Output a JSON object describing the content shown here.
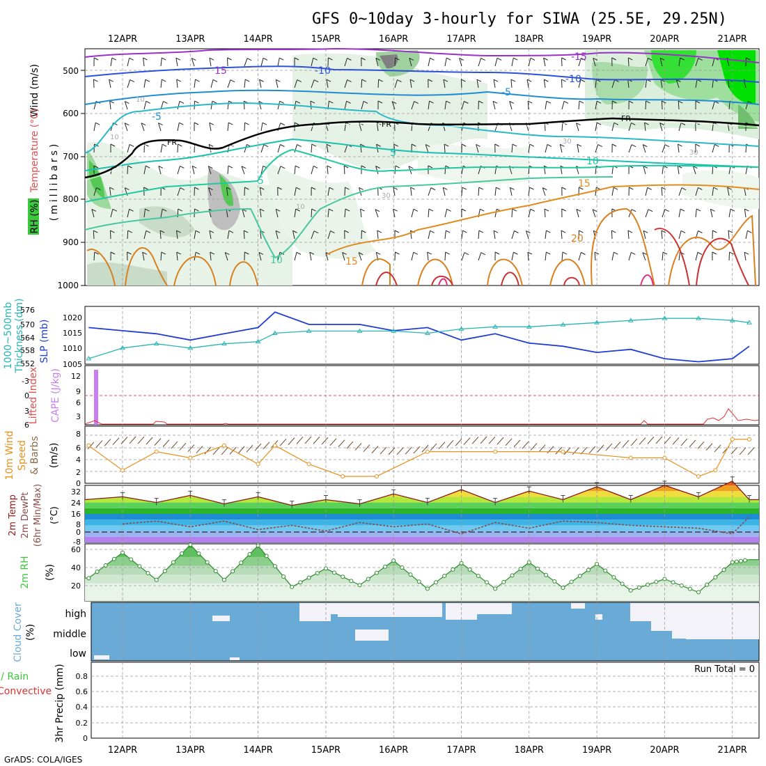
{
  "title": "GFS 0~10day 3-hourly for SIWA (25.5E, 29.25N)",
  "footer": "GrADS: COLA/IGES",
  "dates": [
    "12APR",
    "13APR",
    "14APR",
    "15APR",
    "16APR",
    "17APR",
    "18APR",
    "19APR",
    "20APR",
    "21APR"
  ],
  "colors": {
    "rh_green": "#3cc83c",
    "fr_line": "#000000",
    "slp_line": "#1e3cd2",
    "thickness_line": "#28b4b4",
    "cape_bar": "#c87ef0",
    "li_line": "#e03232",
    "wind_speed": "#e6901e",
    "temp_curve": "#8b1a1a",
    "dewpt_curve": "#8b4a4a",
    "cloud_fill": "#6aaad6",
    "cloud_clear": "#f2f2f8"
  },
  "panels": {
    "upper": {
      "ylabels": [
        "Wind (m/s)",
        "Temperature (°C)",
        "RH (%)",
        "(millibars)"
      ],
      "pressure_ticks": [
        "500",
        "600",
        "700",
        "800",
        "900",
        "1000"
      ],
      "contour_labels": [
        "15",
        "-15",
        "-10",
        "-10",
        "-5",
        "-5",
        "5",
        "FR",
        "FR",
        "FR",
        "5",
        "10",
        "15",
        "10",
        "15",
        "20",
        "10",
        "30",
        "30",
        "10",
        "10",
        "30"
      ]
    },
    "slp": {
      "ylabel_left": [
        "Thickness (dm)",
        "1000~500mb"
      ],
      "ylabel_right": "SLP (mb)",
      "ticks_thick": [
        "576",
        "570",
        "564",
        "558",
        "552"
      ],
      "ticks_slp": [
        "1020",
        "1015",
        "1010",
        "1005"
      ]
    },
    "cape": {
      "ylabel_left": "Lifted Index",
      "ylabel_right": "CAPE (J/kg)",
      "ticks_li": [
        "-3",
        "0",
        "3",
        "6"
      ],
      "ticks_cape": [
        "12",
        "9",
        "6",
        "3"
      ]
    },
    "wind10m": {
      "ylabel": [
        "10m Wind",
        "Speed",
        "& Barbs",
        "(m/s)"
      ],
      "ticks": [
        "8",
        "6",
        "4",
        "2",
        "0"
      ]
    },
    "temp2m": {
      "ylabel": [
        "2m Temp",
        "2m DewPt",
        "(6hr Min/Max)",
        "(°C)"
      ],
      "ticks": [
        "32",
        "24",
        "16",
        "8",
        "0",
        "-8"
      ]
    },
    "rh2m": {
      "ylabel": [
        "2m RH",
        "(%)"
      ],
      "ticks": [
        "60",
        "40",
        "20"
      ]
    },
    "cloud": {
      "ylabel": [
        "Cloud Cover",
        "(%)"
      ],
      "levels": [
        "high",
        "middle",
        "low"
      ]
    },
    "precip": {
      "ylabel": [
        "Total / Rain",
        "Convective",
        "3hr Precip (mm)"
      ],
      "ticks": [
        "0.8",
        "0.6",
        "0.4",
        "0.2",
        "0"
      ],
      "run_total": "Run Total = 0"
    }
  },
  "chart_data": [
    {
      "type": "line",
      "title": "1000~500mb Thickness (dm) and SLP (mb)",
      "x": [
        "11APR12",
        "12APR00",
        "12APR12",
        "13APR00",
        "13APR12",
        "14APR00",
        "14APR06",
        "14APR18",
        "15APR12",
        "16APR00",
        "16APR12",
        "17APR00",
        "17APR12",
        "18APR00",
        "18APR12",
        "19APR00",
        "19APR12",
        "20APR00",
        "20APR12",
        "21APR00",
        "21APR06"
      ],
      "series": [
        {
          "name": "SLP (mb)",
          "values": [
            1017,
            1016,
            1015,
            1013,
            1015,
            1017,
            1022,
            1018,
            1018,
            1016,
            1017,
            1013,
            1015,
            1012,
            1011,
            1009,
            1010,
            1007,
            1006,
            1007,
            1011
          ]
        },
        {
          "name": "Thickness (dm)",
          "values": [
            553,
            558,
            560,
            558,
            560,
            561,
            565,
            566,
            566,
            566,
            565,
            567,
            568,
            568,
            569,
            570,
            571,
            572,
            572,
            571,
            570
          ]
        }
      ]
    },
    {
      "type": "line",
      "title": "10m Wind Speed (m/s)",
      "x": [
        "11APR12",
        "12APR00",
        "12APR12",
        "13APR00",
        "13APR12",
        "14APR00",
        "14APR06",
        "14APR18",
        "15APR06",
        "15APR18",
        "16APR12",
        "17APR12",
        "18APR12",
        "19APR12",
        "20APR00",
        "20APR12",
        "20APR18",
        "21APR00",
        "21APR06"
      ],
      "series": [
        {
          "name": "speed",
          "values": [
            6,
            2,
            5,
            4,
            6,
            3,
            6,
            3,
            1,
            1,
            5,
            5,
            5,
            4,
            4,
            1,
            2,
            7,
            7
          ]
        }
      ],
      "ylim": [
        0,
        8
      ]
    },
    {
      "type": "line",
      "title": "2m Temp / 2m DewPt (°C)",
      "x": [
        "12APR00",
        "12APR12",
        "13APR00",
        "13APR12",
        "14APR00",
        "14APR12",
        "15APR00",
        "15APR12",
        "16APR00",
        "16APR12",
        "17APR00",
        "17APR12",
        "18APR00",
        "18APR12",
        "19APR00",
        "19APR12",
        "20APR00",
        "20APR12",
        "21APR00",
        "21APR06"
      ],
      "series": [
        {
          "name": "2m Temp",
          "values": [
            24,
            20,
            25,
            19,
            24,
            18,
            22,
            19,
            26,
            20,
            29,
            20,
            28,
            22,
            31,
            22,
            32,
            24,
            35,
            22
          ]
        },
        {
          "name": "2m DewPt",
          "values": [
            5,
            7,
            3,
            7,
            1,
            4,
            0,
            6,
            3,
            5,
            -2,
            6,
            2,
            7,
            6,
            4,
            3,
            2,
            -2,
            10
          ]
        }
      ],
      "ylim": [
        -8,
        32
      ]
    },
    {
      "type": "line",
      "title": "2m RH (%)",
      "x": [
        "11APR12",
        "12APR00",
        "12APR12",
        "13APR00",
        "13APR12",
        "14APR00",
        "14APR12",
        "15APR00",
        "15APR12",
        "16APR00",
        "16APR12",
        "17APR00",
        "17APR12",
        "18APR00",
        "18APR12",
        "19APR00",
        "19APR12",
        "20APR00",
        "20APR12",
        "21APR00",
        "21APR06"
      ],
      "series": [
        {
          "name": "2m RH",
          "values": [
            26,
            55,
            24,
            64,
            24,
            63,
            16,
            37,
            18,
            46,
            14,
            43,
            14,
            44,
            15,
            42,
            12,
            25,
            10,
            44,
            47
          ]
        }
      ],
      "ylim": [
        0,
        65
      ]
    },
    {
      "type": "bar",
      "title": "CAPE (J/kg)",
      "categories": [
        "11APR15"
      ],
      "values": [
        13
      ],
      "ylim": [
        0,
        13
      ]
    }
  ]
}
